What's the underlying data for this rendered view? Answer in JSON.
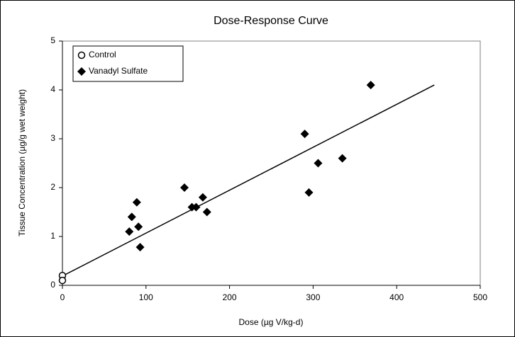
{
  "chart_data": {
    "type": "scatter",
    "title": "Dose-Response Curve",
    "x_label": "Dose (µg V/kg-d)",
    "y_label": "Tissue Concentration (µg/g wet weight)",
    "xlim": [
      0,
      500
    ],
    "xticks": [
      0,
      100,
      200,
      300,
      400,
      500
    ],
    "ylim": [
      0,
      5
    ],
    "yticks": [
      0,
      1,
      2,
      3,
      4,
      5
    ],
    "grid": false,
    "legend": "upper left",
    "series": [
      {
        "name": "Control",
        "color": "#000000",
        "marker": "circle-open",
        "x": [
          0,
          0
        ],
        "values": [
          0.2,
          0.1
        ]
      },
      {
        "name": "Vanadyl Sulfate",
        "color": "#000000",
        "marker": "diamond",
        "x": [
          80,
          83,
          89,
          91,
          93,
          146,
          155,
          160,
          168,
          173,
          290,
          295,
          306,
          335,
          369
        ],
        "values": [
          1.1,
          1.4,
          1.7,
          1.2,
          0.78,
          2.0,
          1.6,
          1.6,
          1.8,
          1.5,
          3.1,
          1.9,
          2.5,
          2.6,
          4.1
        ]
      }
    ],
    "trendline": {
      "color": "#000000",
      "x": [
        0,
        445
      ],
      "values": [
        0.19,
        4.1
      ]
    }
  }
}
